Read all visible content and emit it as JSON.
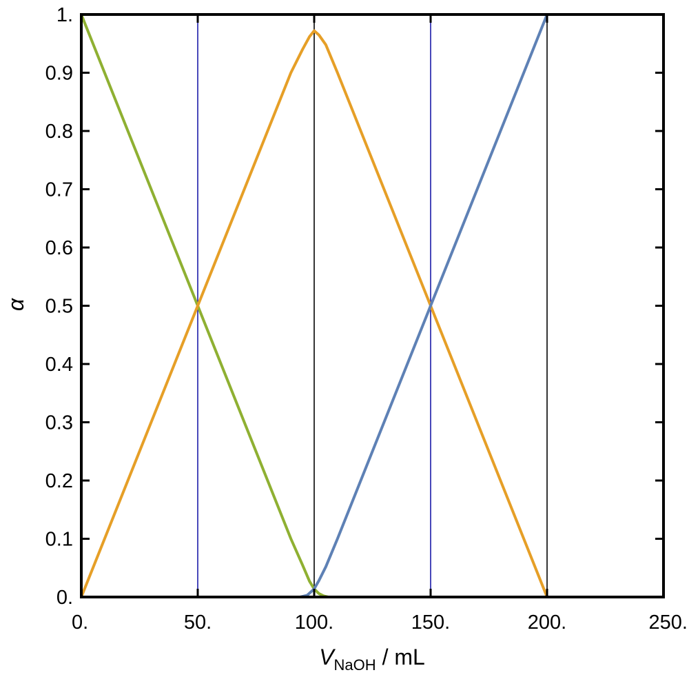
{
  "chart_data": {
    "type": "line",
    "xlabel": {
      "symbol": "V",
      "subscript": "NaOH",
      "suffix": " / mL"
    },
    "ylabel": "α",
    "xlim": [
      0,
      250
    ],
    "ylim": [
      0,
      1
    ],
    "x_ticks": [
      0,
      50,
      100,
      150,
      200,
      250
    ],
    "x_tick_labels": [
      "0.",
      "50.",
      "100.",
      "150.",
      "200.",
      "250."
    ],
    "y_ticks": [
      0,
      0.1,
      0.2,
      0.3,
      0.4,
      0.5,
      0.6,
      0.7,
      0.8,
      0.9,
      1
    ],
    "y_tick_labels": [
      "0.",
      "0.1",
      "0.2",
      "0.3",
      "0.4",
      "0.5",
      "0.6",
      "0.7",
      "0.8",
      "0.9",
      "1."
    ],
    "grid": false,
    "vertical_lines": [
      {
        "x": 50,
        "color": "#1a1aa8"
      },
      {
        "x": 100,
        "color": "#000000"
      },
      {
        "x": 150,
        "color": "#1a1aa8"
      },
      {
        "x": 200,
        "color": "#000000"
      }
    ],
    "series": [
      {
        "color": "#8fb032",
        "x": [
          0,
          25,
          50,
          75,
          90,
          95,
          98,
          100,
          102,
          104,
          106,
          250
        ],
        "y": [
          1.0,
          0.75,
          0.5,
          0.25,
          0.1,
          0.055,
          0.027,
          0.014,
          0.006,
          0.002,
          0.0,
          0.0
        ]
      },
      {
        "color": "#e69f27",
        "x": [
          0,
          25,
          50,
          75,
          90,
          95,
          98,
          100,
          102,
          105,
          110,
          125,
          150,
          175,
          200,
          250
        ],
        "y": [
          0.0,
          0.25,
          0.5,
          0.75,
          0.9,
          0.94,
          0.962,
          0.972,
          0.965,
          0.948,
          0.9,
          0.75,
          0.5,
          0.25,
          0.0,
          0.0
        ]
      },
      {
        "color": "#5e81b5",
        "x": [
          0,
          94,
          97,
          100,
          102,
          105,
          110,
          125,
          150,
          175,
          200,
          250
        ],
        "y": [
          0.0,
          0.0,
          0.003,
          0.014,
          0.028,
          0.052,
          0.1,
          0.25,
          0.5,
          0.75,
          1.0,
          1.0
        ]
      }
    ]
  }
}
